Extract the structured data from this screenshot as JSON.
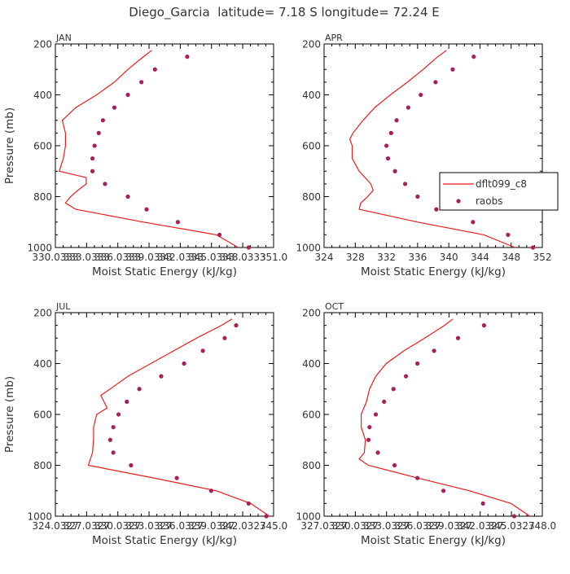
{
  "figure_title": "Diego_Garcia  latitude= 7.18 S longitude= 72.24 E",
  "colors": {
    "model": "#ee1c1c",
    "obs": "#a8205a",
    "frame": "#000000",
    "text": "#333333"
  },
  "legend": {
    "model_label": "dflt099_c8",
    "obs_label": "raobs"
  },
  "chart_data": [
    {
      "type": "line",
      "month": "JAN",
      "xlabel": "Moist Static Energy (kJ/kg)",
      "ylabel": "Pressure (mb)",
      "xlim": [
        330.0333,
        351.0
      ],
      "ylim": [
        1000,
        200
      ],
      "x_ticks": [
        330.0333,
        333.0333,
        336.0333,
        339.0333,
        342.0333,
        345.0333,
        348.0333,
        351.0
      ],
      "x_tick_labels": [
        "330.0333",
        "333.0333",
        "336.0333",
        "339.0333",
        "342.0333",
        "345.0333",
        "348.0333",
        "351.0"
      ],
      "y_ticks": [
        200,
        400,
        600,
        800,
        1000
      ],
      "model": {
        "pressure": [
          225,
          250,
          300,
          350,
          400,
          450,
          500,
          550,
          600,
          650,
          700,
          725,
          750,
          775,
          800,
          825,
          850,
          900,
          950,
          1000
        ],
        "mse": [
          339.3,
          338.5,
          337.0,
          335.7,
          334.0,
          332.0,
          330.7,
          331.0,
          331.0,
          330.8,
          330.4,
          333.0,
          333.0,
          332.2,
          331.5,
          331.0,
          332.0,
          338.5,
          345.5,
          347.6
        ]
      },
      "obs": {
        "pressure": [
          250,
          300,
          350,
          400,
          450,
          500,
          550,
          600,
          650,
          700,
          750,
          800,
          850,
          900,
          950,
          1000
        ],
        "mse": [
          342.7,
          339.6,
          338.3,
          337.0,
          335.7,
          334.6,
          334.2,
          333.8,
          333.6,
          333.6,
          334.8,
          337.0,
          338.8,
          341.8,
          345.8,
          348.6
        ]
      }
    },
    {
      "type": "line",
      "month": "APR",
      "xlabel": "Moist Static Energy (kJ/kg)",
      "ylabel": "",
      "xlim": [
        324,
        352
      ],
      "ylim": [
        1000,
        200
      ],
      "x_ticks": [
        324,
        328,
        332,
        336,
        340,
        344,
        348,
        352
      ],
      "x_tick_labels": [
        "324",
        "328",
        "332",
        "336",
        "340",
        "344",
        "348",
        "352"
      ],
      "y_ticks": [
        200,
        400,
        600,
        800,
        1000
      ],
      "model": {
        "pressure": [
          225,
          250,
          300,
          350,
          400,
          450,
          500,
          550,
          575,
          600,
          650,
          700,
          750,
          775,
          800,
          825,
          850,
          900,
          950,
          1000
        ],
        "mse": [
          339.7,
          338.6,
          336.7,
          334.7,
          332.5,
          330.5,
          329.0,
          327.7,
          327.3,
          327.6,
          327.6,
          328.5,
          330.0,
          330.3,
          329.6,
          328.7,
          328.5,
          336.0,
          344.5,
          348.5
        ]
      },
      "obs": {
        "pressure": [
          250,
          300,
          350,
          400,
          450,
          500,
          550,
          600,
          650,
          700,
          750,
          800,
          850,
          900,
          950,
          1000
        ],
        "mse": [
          343.2,
          340.5,
          338.3,
          336.4,
          334.8,
          333.3,
          332.6,
          332.0,
          332.2,
          333.1,
          334.4,
          336.0,
          338.4,
          343.1,
          347.6,
          350.8
        ]
      }
    },
    {
      "type": "line",
      "month": "JUL",
      "xlabel": "Moist Static Energy (kJ/kg)",
      "ylabel": "Pressure (mb)",
      "xlim": [
        324.0327,
        345.0
      ],
      "ylim": [
        1000,
        200
      ],
      "x_ticks": [
        324.0327,
        327.0327,
        330.0327,
        333.0327,
        336.0327,
        339.0327,
        342.0327,
        345.0
      ],
      "x_tick_labels": [
        "324.0327",
        "327.0327",
        "330.0327",
        "333.0327",
        "336.0327",
        "339.0327",
        "342.0327",
        "345.0"
      ],
      "y_ticks": [
        200,
        400,
        600,
        800,
        1000
      ],
      "model": {
        "pressure": [
          225,
          250,
          300,
          350,
          400,
          450,
          500,
          525,
          550,
          575,
          600,
          650,
          700,
          750,
          800,
          850,
          900,
          950,
          1000
        ],
        "mse": [
          341.0,
          340.0,
          337.6,
          335.4,
          333.2,
          331.0,
          329.3,
          328.4,
          328.7,
          329.0,
          328.0,
          327.7,
          327.7,
          327.6,
          327.2,
          333.5,
          339.5,
          342.8,
          344.6
        ]
      },
      "obs": {
        "pressure": [
          250,
          300,
          350,
          400,
          450,
          500,
          550,
          600,
          650,
          700,
          750,
          800,
          850,
          900,
          950,
          1000
        ],
        "mse": [
          341.4,
          340.3,
          338.2,
          336.4,
          334.2,
          332.1,
          330.9,
          330.1,
          329.6,
          329.3,
          329.6,
          331.3,
          335.7,
          339.0,
          342.6,
          344.3
        ]
      }
    },
    {
      "type": "line",
      "month": "OCT",
      "xlabel": "Moist Static Energy (kJ/kg)",
      "ylabel": "",
      "xlim": [
        327.0327,
        348.0
      ],
      "ylim": [
        1000,
        200
      ],
      "x_ticks": [
        327.0327,
        330.0327,
        333.0327,
        336.0327,
        339.0327,
        342.0327,
        345.0327,
        348.0
      ],
      "x_tick_labels": [
        "327.0327",
        "330.0327",
        "333.0327",
        "336.0327",
        "339.0327",
        "342.0327",
        "345.0327",
        "348.0"
      ],
      "y_ticks": [
        200,
        400,
        600,
        800,
        1000
      ],
      "model": {
        "pressure": [
          225,
          250,
          300,
          350,
          400,
          450,
          500,
          550,
          600,
          650,
          700,
          750,
          775,
          800,
          850,
          900,
          950,
          1000
        ],
        "mse": [
          339.4,
          338.6,
          336.7,
          334.7,
          333.0,
          332.0,
          331.4,
          331.1,
          330.6,
          330.6,
          331.0,
          330.9,
          330.4,
          331.3,
          336.0,
          341.0,
          345.0,
          346.8
        ]
      },
      "obs": {
        "pressure": [
          250,
          300,
          350,
          400,
          450,
          500,
          550,
          600,
          650,
          700,
          750,
          800,
          850,
          900,
          950,
          1000
        ],
        "mse": [
          342.4,
          339.9,
          337.6,
          336.0,
          334.9,
          333.7,
          332.8,
          332.0,
          331.4,
          331.3,
          332.2,
          333.8,
          336.0,
          338.5,
          342.3,
          345.3
        ]
      }
    }
  ]
}
